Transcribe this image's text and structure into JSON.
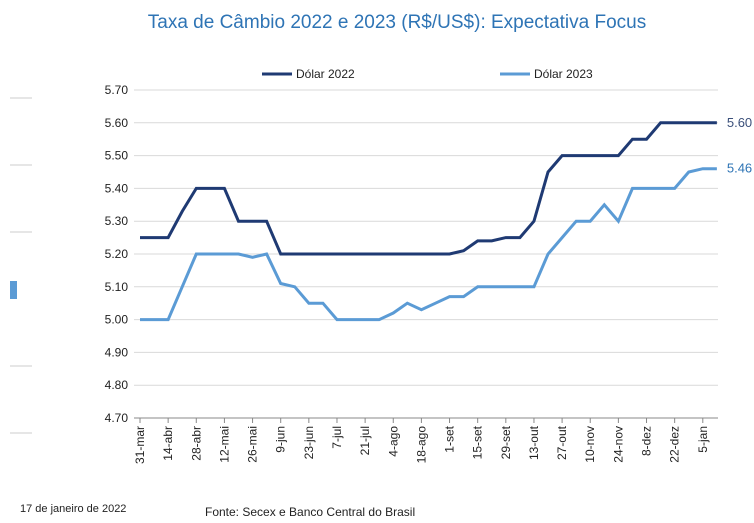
{
  "chart_data": {
    "type": "line",
    "title": "Taxa de Câmbio 2022 e 2023 (R$/US$): Expectativa Focus",
    "categories": [
      "31-mar",
      null,
      "14-abr",
      null,
      "28-abr",
      null,
      "12-mai",
      null,
      "26-mai",
      null,
      "9-jun",
      null,
      "23-jun",
      null,
      "7-jul",
      null,
      "21-jul",
      null,
      "4-ago",
      null,
      "18-ago",
      null,
      "1-set",
      null,
      "15-set",
      null,
      "29-set",
      null,
      "13-out",
      null,
      "27-out",
      null,
      "10-nov",
      null,
      "24-nov",
      null,
      "8-dez",
      null,
      "22-dez",
      null,
      "5-jan",
      null
    ],
    "series": [
      {
        "name": "Dólar 2022",
        "color": "#1f3a73",
        "values": [
          5.25,
          5.25,
          5.25,
          5.33,
          5.4,
          5.4,
          5.4,
          5.3,
          5.3,
          5.3,
          5.2,
          5.2,
          5.2,
          5.2,
          5.2,
          5.2,
          5.2,
          5.2,
          5.2,
          5.2,
          5.2,
          5.2,
          5.2,
          5.21,
          5.24,
          5.24,
          5.25,
          5.25,
          5.3,
          5.45,
          5.5,
          5.5,
          5.5,
          5.5,
          5.5,
          5.55,
          5.55,
          5.6,
          5.6,
          5.6,
          5.6,
          5.6
        ],
        "value_labels": [
          null,
          null,
          null,
          null,
          null,
          null,
          null,
          null,
          null,
          null,
          null,
          null,
          null,
          null,
          null,
          null,
          null,
          null,
          null,
          null,
          null,
          null,
          null,
          null,
          null,
          null,
          null,
          null,
          null,
          null,
          null,
          null,
          null,
          null,
          null,
          null,
          null,
          null,
          null,
          null,
          null,
          "5.60"
        ]
      },
      {
        "name": "Dólar 2023",
        "color": "#5b9bd5",
        "values": [
          5.0,
          5.0,
          5.0,
          5.1,
          5.2,
          5.2,
          5.2,
          5.2,
          5.19,
          5.2,
          5.11,
          5.1,
          5.05,
          5.05,
          5.0,
          5.0,
          5.0,
          5.0,
          5.02,
          5.05,
          5.03,
          5.05,
          5.07,
          5.07,
          5.1,
          5.1,
          5.1,
          5.1,
          5.1,
          5.2,
          5.25,
          5.3,
          5.3,
          5.35,
          5.3,
          5.4,
          5.4,
          5.4,
          5.4,
          5.45,
          5.46,
          5.46
        ],
        "value_labels": [
          null,
          null,
          null,
          null,
          null,
          null,
          null,
          null,
          null,
          null,
          null,
          null,
          null,
          null,
          null,
          null,
          null,
          null,
          null,
          null,
          null,
          null,
          null,
          null,
          null,
          null,
          null,
          null,
          null,
          null,
          null,
          null,
          null,
          null,
          null,
          null,
          null,
          null,
          null,
          null,
          null,
          "5.46"
        ]
      }
    ],
    "ylim": [
      4.7,
      5.7
    ],
    "yticks": [
      {
        "value": 4.7,
        "label": "4.70"
      },
      {
        "value": 4.8,
        "label": "4.80"
      },
      {
        "value": 4.9,
        "label": "4.90"
      },
      {
        "value": 5.0,
        "label": "5.00"
      },
      {
        "value": 5.1,
        "label": "5.10"
      },
      {
        "value": 5.2,
        "label": "5.20"
      },
      {
        "value": 5.3,
        "label": "5.30"
      },
      {
        "value": 5.4,
        "label": "5.40"
      },
      {
        "value": 5.5,
        "label": "5.50"
      },
      {
        "value": 5.6,
        "label": "5.60"
      },
      {
        "value": 5.7,
        "label": "5.70"
      }
    ],
    "grid": true,
    "legend": "top",
    "date_note": "17 de janeiro de 2022",
    "source": "Fonte: Secex e Banco Central do Brasil"
  }
}
